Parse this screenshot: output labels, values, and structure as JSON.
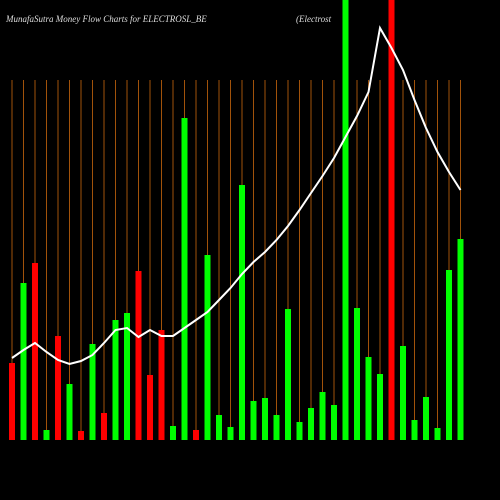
{
  "chart_data": {
    "type": "bar",
    "title": "MunafaSutra  Money Flow  Charts for ELECTROSL_BE",
    "subtitle": "(Electrost",
    "categories": [
      null,
      null,
      null,
      null,
      null,
      null,
      null,
      null,
      null,
      null,
      null,
      null,
      null,
      null,
      null,
      null,
      null,
      null,
      null,
      null,
      null,
      null,
      null,
      null,
      null,
      null,
      null,
      null,
      null,
      null,
      null,
      null,
      null,
      null,
      null,
      null,
      null,
      null,
      null,
      null
    ],
    "values": [
      77,
      157,
      177,
      10,
      104,
      56,
      9,
      96,
      27,
      120,
      127,
      169,
      65,
      110,
      14,
      322,
      10,
      185,
      25,
      13,
      255,
      39,
      42,
      25,
      131,
      18,
      32,
      48,
      35,
      460,
      132,
      83,
      66,
      460,
      94,
      20,
      43,
      12,
      170,
      201
    ],
    "colors": [
      "#ff0000",
      "#00ff00",
      "#ff0000",
      "#00ff00",
      "#ff0000",
      "#00ff00",
      "#ff0000",
      "#00ff00",
      "#ff0000",
      "#00ff00",
      "#00ff00",
      "#ff0000",
      "#ff0000",
      "#ff0000",
      "#00ff00",
      "#00ff00",
      "#ff0000",
      "#00ff00",
      "#00ff00",
      "#00ff00",
      "#00ff00",
      "#00ff00",
      "#00ff00",
      "#00ff00",
      "#00ff00",
      "#00ff00",
      "#00ff00",
      "#00ff00",
      "#00ff00",
      "#00ff00",
      "#00ff00",
      "#00ff00",
      "#00ff00",
      "#ff0000",
      "#00ff00",
      "#00ff00",
      "#00ff00",
      "#00ff00",
      "#00ff00",
      "#00ff00"
    ],
    "line": {
      "color": "#ffffff",
      "values": [
        82,
        90,
        97,
        88,
        80,
        76,
        79,
        85,
        97,
        110,
        112,
        103,
        110,
        104,
        104,
        112,
        120,
        128,
        140,
        152,
        166,
        178,
        188,
        200,
        214,
        230,
        247,
        264,
        282,
        303,
        324,
        348,
        412,
        392,
        370,
        340,
        312,
        288,
        268,
        250
      ]
    },
    "ylim": [
      0,
      440
    ]
  }
}
